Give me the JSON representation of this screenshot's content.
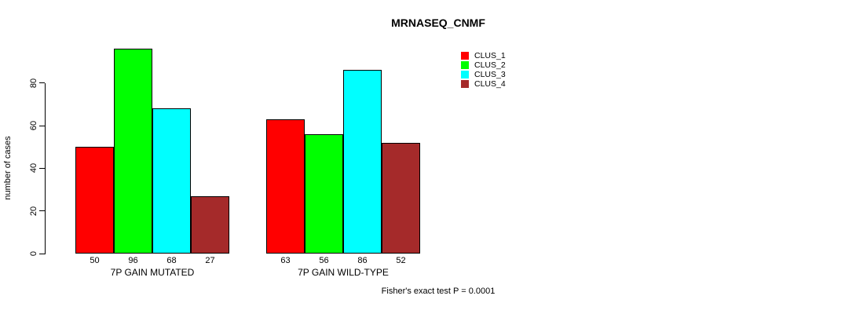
{
  "chart_data": {
    "type": "bar",
    "title": "MRNASEQ_CNMF",
    "ylabel": "number of cases",
    "xlabel": "",
    "footer": "Fisher's exact test P = 0.0001",
    "categories": [
      "7P GAIN MUTATED",
      "7P GAIN WILD-TYPE"
    ],
    "series": [
      {
        "name": "CLUS_1",
        "color": "#FF0000",
        "values": [
          50,
          63
        ]
      },
      {
        "name": "CLUS_2",
        "color": "#00FF00",
        "values": [
          96,
          56
        ]
      },
      {
        "name": "CLUS_3",
        "color": "#00FFFF",
        "values": [
          68,
          86
        ]
      },
      {
        "name": "CLUS_4",
        "color": "#A52A2A",
        "values": [
          27,
          52
        ]
      }
    ],
    "bar_value_labels_shown": true,
    "y_ticks": [
      0,
      20,
      40,
      60,
      80
    ],
    "ylim": [
      0,
      96
    ],
    "grid": false,
    "legend": {
      "position": "top-right",
      "entries": [
        {
          "label": "CLUS_1",
          "color": "#FF0000"
        },
        {
          "label": "CLUS_2",
          "color": "#00FF00"
        },
        {
          "label": "CLUS_3",
          "color": "#00FFFF"
        },
        {
          "label": "CLUS_4",
          "color": "#A52A2A"
        }
      ]
    }
  }
}
